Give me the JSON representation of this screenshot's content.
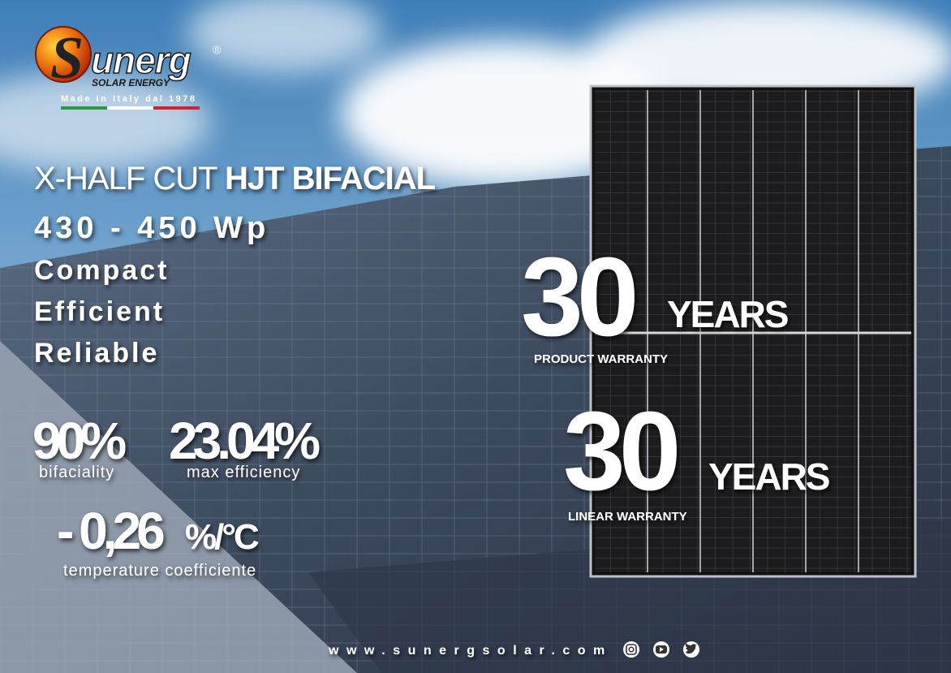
{
  "logo": {
    "initial": "S",
    "name": "unerg",
    "registered": "®",
    "tagline": "SOLAR ENERGY",
    "origin": "Made in Italy dal 1978"
  },
  "headline": {
    "light": "X-HALF CUT",
    "bold": "HJT BIFACIAL"
  },
  "power_range": "430 - 450 Wp",
  "features": [
    "Compact",
    "Efficient",
    "Reliable"
  ],
  "stats": [
    {
      "value": "90%",
      "label": "bifaciality"
    },
    {
      "value": "23.04%",
      "label": "max efficiency"
    },
    {
      "value": "- 0,26",
      "unit": "%/°C",
      "label": "temperature coefficiente"
    }
  ],
  "warranties": [
    {
      "years": "30",
      "unit": "YEARS",
      "label": "PRODUCT WARRANTY"
    },
    {
      "years": "30",
      "unit": "YEARS",
      "label": "LINEAR WARRANTY"
    }
  ],
  "footer": {
    "website": "www.sunergsolar.com"
  }
}
